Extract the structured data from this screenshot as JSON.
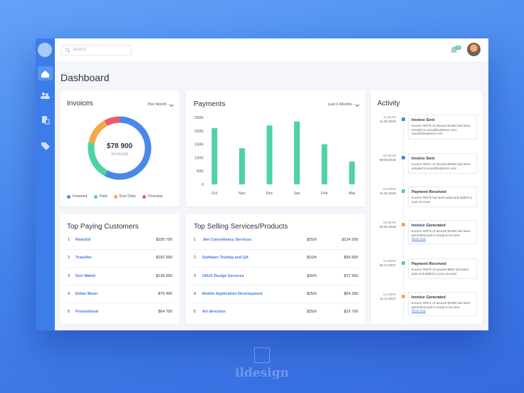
{
  "topbar": {
    "search_placeholder": "Search",
    "notification_count": "12"
  },
  "header": {
    "title": "Dashboard"
  },
  "chart_data": [
    {
      "type": "donut",
      "title": "Invoices",
      "filter": "This Month",
      "center_value": "$78 900",
      "center_label": "invoiced",
      "categories": [
        "Invoiced",
        "Paid",
        "Due Date",
        "Overdue"
      ],
      "values": [
        58,
        20,
        14,
        8
      ],
      "colors": [
        "#4a88e8",
        "#4fd2a4",
        "#f5a847",
        "#ec5b6a"
      ]
    },
    {
      "type": "bar",
      "title": "Payments",
      "filter": "Last 6 Months",
      "categories": [
        "Oct",
        "Nov",
        "Dec",
        "Jan",
        "Feb",
        "Mar"
      ],
      "values": [
        210000,
        135000,
        220000,
        235000,
        150000,
        85000
      ],
      "color": "#4fd2a4",
      "ylim": [
        0,
        250000
      ],
      "yticks": [
        0,
        {
          "value": 50000,
          "label": "50K"
        },
        {
          "value": 100000,
          "label": "100K"
        },
        {
          "value": 150000,
          "label": "150K"
        },
        {
          "value": 200000,
          "label": "200K"
        },
        {
          "value": 250000,
          "label": "250K"
        }
      ]
    }
  ],
  "customers": {
    "title": "Top Paying Customers",
    "rows": [
      [
        "1",
        "Reactiol",
        "$230 700"
      ],
      [
        "2",
        "Traveller",
        "$182 000"
      ],
      [
        "3",
        "Don Walsh",
        "$139 900"
      ],
      [
        "4",
        "Ethan Mann",
        "$75 400"
      ],
      [
        "5",
        "Promotional",
        "$64 700"
      ]
    ]
  },
  "services": {
    "title": "Top Selling Services/Products",
    "rows": [
      [
        "1",
        ".Net Consultancy Services",
        "$25/h",
        "$124 200"
      ],
      [
        "2",
        "Software Testing and QA",
        "$10/h",
        "$99 600"
      ],
      [
        "3",
        "UI/UX Design Services",
        "$30/h",
        "$72 550"
      ],
      [
        "4",
        "Mobile Application Development",
        "$25/h",
        "$64 300"
      ],
      [
        "5",
        "Art direction",
        "$25/h",
        "$23 700"
      ]
    ]
  },
  "activity": {
    "title": "Activity",
    "items": [
      {
        "time": "11:20AM",
        "date": "11-02-2018",
        "title": "Invoice Sent",
        "text": "Invoice #0076 of amount $1300 has been emailed to email@address.com, email2@address.com"
      },
      {
        "time": "10:45AM",
        "date": "08-02-2018",
        "title": "Invoice Sent",
        "text": "Invoice #0071 of amount $2000 has been emailed to email@address.com"
      },
      {
        "time": "02:00PM",
        "date": "11-01-2018",
        "title": "Payment Received",
        "text": "Invoice #0075 has been paid and added to your account."
      },
      {
        "time": "05:45AM",
        "date": "04-01-2018",
        "title": "Invoice Generated",
        "text": "Invoice #0076 of amount $1300 has been generated and is ready to be sent.",
        "action": "Send now"
      },
      {
        "time": "12:30PM",
        "date": "10-12-2017",
        "title": "Payment Received",
        "text": "Invoice #0070 of amount $900 has been paid and added to your account."
      },
      {
        "time": "12:10PM",
        "date": "11-11-2017",
        "title": "Invoice Generated",
        "text": "Invoice #0071 of amount $2000 has been generated and is ready to be sent.",
        "action": "Send now"
      }
    ]
  },
  "brand": "ildesign"
}
